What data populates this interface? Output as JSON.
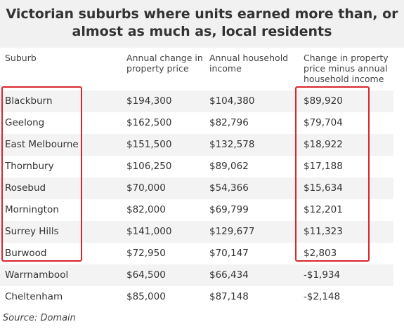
{
  "chart_data": {
    "type": "table",
    "title": "Victorian suburbs where units earned more than, or almost as much as, local residents",
    "columns": [
      "Suburb",
      "Annual change in property price",
      "Annual household income",
      "Change in property price minus annual household income"
    ],
    "rows": [
      [
        "Blackburn",
        "$194,300",
        "$104,380",
        "$89,920"
      ],
      [
        "Geelong",
        "$162,500",
        "$82,796",
        "$79,704"
      ],
      [
        "East Melbourne",
        "$151,500",
        "$132,578",
        "$18,922"
      ],
      [
        "Thornbury",
        "$106,250",
        "$89,062",
        "$17,188"
      ],
      [
        "Rosebud",
        "$70,000",
        "$54,366",
        "$15,634"
      ],
      [
        "Mornington",
        "$82,000",
        "$69,799",
        "$12,201"
      ],
      [
        "Surrey Hills",
        "$141,000",
        "$129,677",
        "$11,323"
      ],
      [
        "Burwood",
        "$72,950",
        "$70,147",
        "$2,803"
      ],
      [
        "Warrnambool",
        "$64,500",
        "$66,434",
        "-$1,934"
      ],
      [
        "Cheltenham",
        "$85,000",
        "$87,148",
        "-$2,148"
      ]
    ],
    "highlighted_rows": [
      0,
      7
    ],
    "highlighted_columns": [
      0,
      3
    ],
    "highlight_color": "#d9262a",
    "stripe_color": "#f3f3f3",
    "source": "Source: Domain"
  }
}
